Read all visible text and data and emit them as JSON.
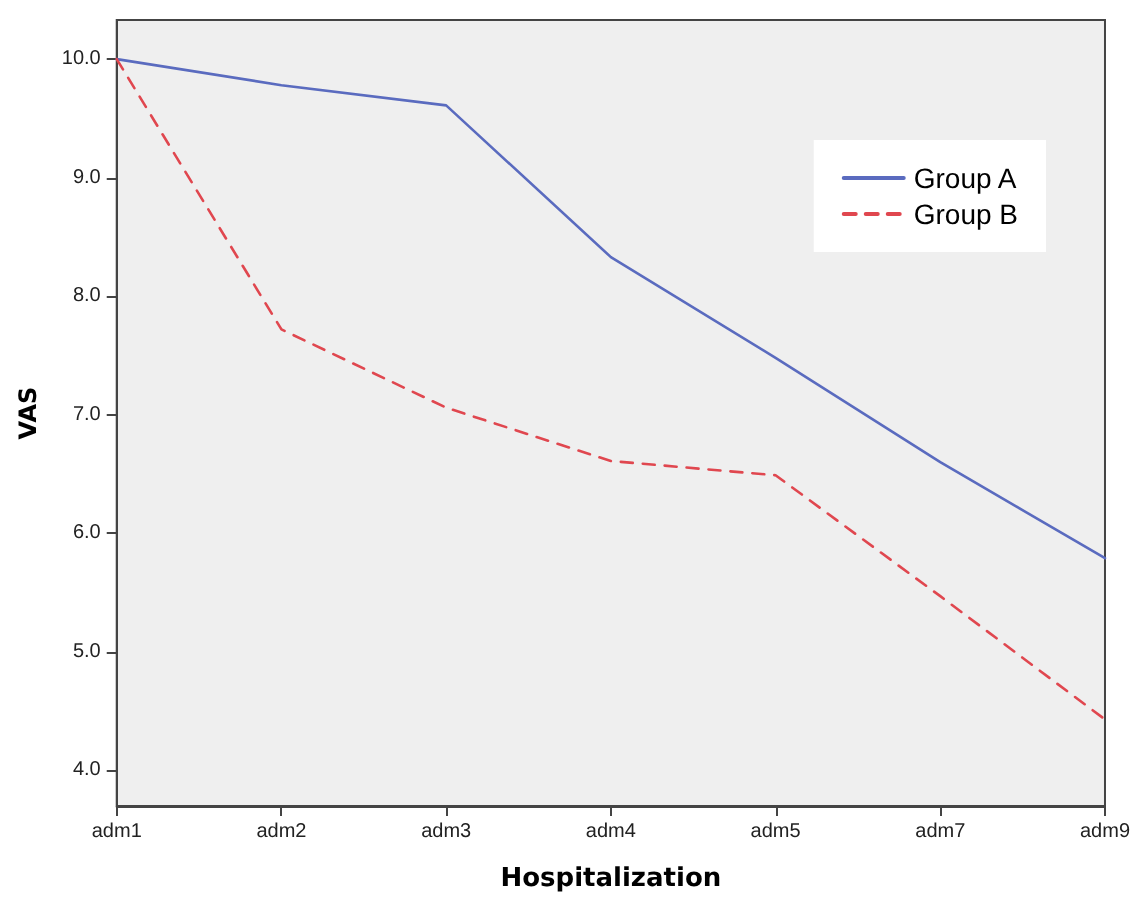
{
  "chart_data": {
    "type": "line",
    "xlabel": "Hospitalization",
    "ylabel": "VAS",
    "categories": [
      "adm1",
      "adm2",
      "adm3",
      "adm4",
      "adm5",
      "adm7",
      "adm9"
    ],
    "series": [
      {
        "name": "Group A",
        "color": "#5a6bbf",
        "line_style": "solid",
        "values": [
          10.0,
          9.78,
          9.61,
          8.33,
          7.48,
          6.6,
          5.79
        ]
      },
      {
        "name": "Group B",
        "color": "#e0474f",
        "line_style": "dashed",
        "values": [
          10.0,
          7.72,
          7.06,
          6.61,
          6.49,
          5.47,
          4.43
        ]
      }
    ],
    "ylim": [
      3.7,
      10.33
    ],
    "yticks": [
      {
        "value": 4,
        "label": "4.0"
      },
      {
        "value": 5,
        "label": "5.0"
      },
      {
        "value": 6,
        "label": "6.0"
      },
      {
        "value": 7,
        "label": "7.0"
      },
      {
        "value": 8,
        "label": "8.0"
      },
      {
        "value": 9,
        "label": "9.0"
      },
      {
        "value": 10,
        "label": "10.0"
      }
    ],
    "grid": false,
    "legend": "top right",
    "marker": "none"
  }
}
